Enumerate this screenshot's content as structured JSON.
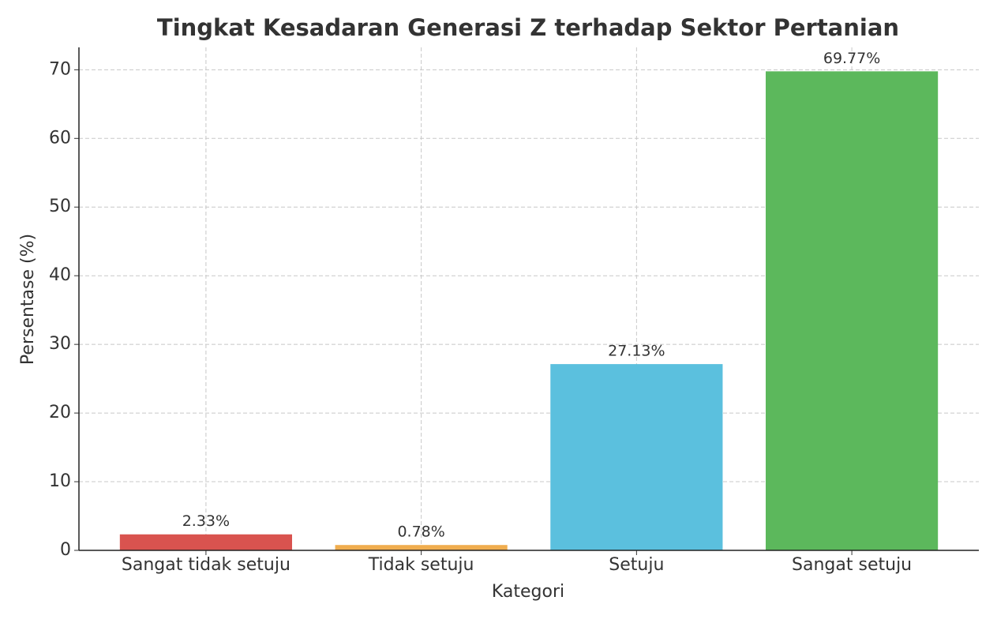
{
  "chart_data": {
    "type": "bar",
    "title": "Tingkat Kesadaran Generasi Z terhadap Sektor Pertanian",
    "x_label": "Kategori",
    "y_label": "Persentase (%)",
    "categories": [
      "Sangat tidak setuju",
      "Tidak setuju",
      "Setuju",
      "Sangat setuju"
    ],
    "values": [
      2.33,
      0.78,
      27.13,
      69.77
    ],
    "value_labels": [
      "2.33%",
      "0.78%",
      "27.13%",
      "69.77%"
    ],
    "colors": [
      "#d9534f",
      "#f0ad4e",
      "#5bc0de",
      "#5cb85c"
    ],
    "ylim": [
      0,
      73.26
    ],
    "yticks": [
      0,
      10,
      20,
      30,
      40,
      50,
      60,
      70
    ],
    "grid": true
  }
}
